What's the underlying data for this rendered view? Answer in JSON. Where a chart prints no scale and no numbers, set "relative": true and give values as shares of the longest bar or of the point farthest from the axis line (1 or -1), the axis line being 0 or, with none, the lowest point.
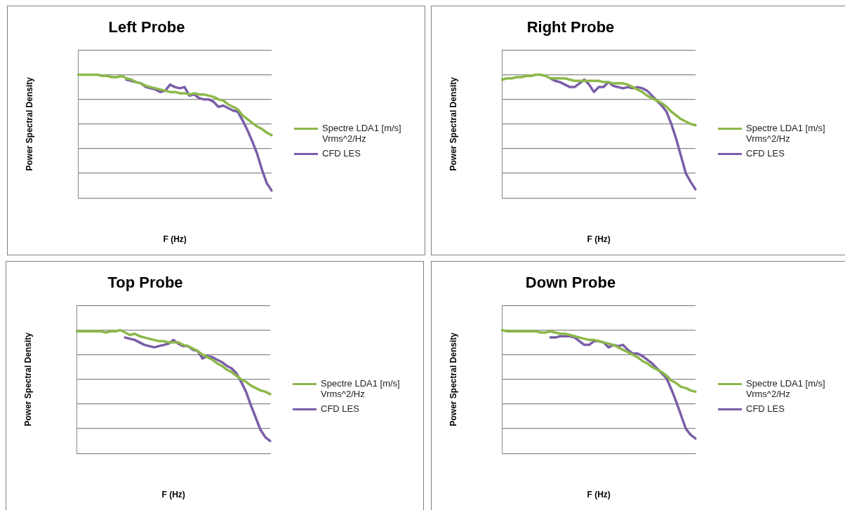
{
  "chart_data": [
    {
      "type": "line",
      "title": "Left Probe",
      "xlabel": "F (Hz)",
      "ylabel": "Power Spectral Density",
      "relative": true,
      "grid": "y",
      "legend": "right",
      "marker": "none",
      "categories": [
        null,
        null,
        null,
        null,
        null,
        null,
        null,
        null,
        null,
        null,
        null,
        null,
        null,
        null,
        null,
        null,
        null,
        null,
        null,
        null,
        null,
        null,
        null,
        null,
        null,
        null,
        null,
        null,
        null,
        null,
        null,
        null,
        null,
        null,
        null,
        null,
        null,
        null,
        null,
        null,
        null
      ],
      "series": [
        {
          "name": "Spectre LDA1 [m/s] Vrms^2/Hz",
          "color": "#8cb84a",
          "values": [
            1.0,
            1.0,
            1.0,
            1.0,
            1.0,
            0.99,
            0.99,
            0.98,
            0.98,
            0.99,
            0.97,
            0.96,
            0.94,
            0.93,
            0.91,
            0.9,
            0.89,
            0.88,
            0.87,
            0.86,
            0.86,
            0.85,
            0.85,
            0.84,
            0.85,
            0.84,
            0.84,
            0.83,
            0.82,
            0.8,
            0.79,
            0.76,
            0.74,
            0.72,
            0.67,
            0.64,
            0.61,
            0.58,
            0.56,
            0.53,
            0.51
          ]
        },
        {
          "name": "CFD LES",
          "color": "#7b5ea7",
          "values": [
            null,
            null,
            null,
            null,
            null,
            null,
            null,
            null,
            null,
            null,
            0.96,
            0.95,
            0.94,
            0.93,
            0.9,
            0.89,
            0.88,
            0.86,
            0.87,
            0.92,
            0.9,
            0.89,
            0.9,
            0.83,
            0.84,
            0.81,
            0.8,
            0.8,
            0.78,
            0.74,
            0.75,
            0.73,
            0.71,
            0.7,
            0.63,
            0.55,
            0.46,
            0.36,
            0.23,
            0.12,
            0.06
          ]
        }
      ]
    },
    {
      "type": "line",
      "title": "Right Probe",
      "xlabel": "F (Hz)",
      "ylabel": "Power Spectral Density",
      "relative": true,
      "grid": "y",
      "legend": "right",
      "marker": "none",
      "categories": [
        null,
        null,
        null,
        null,
        null,
        null,
        null,
        null,
        null,
        null,
        null,
        null,
        null,
        null,
        null,
        null,
        null,
        null,
        null,
        null,
        null,
        null,
        null,
        null,
        null,
        null,
        null,
        null,
        null,
        null,
        null,
        null,
        null,
        null,
        null,
        null,
        null,
        null,
        null,
        null,
        null
      ],
      "series": [
        {
          "name": "Spectre LDA1 [m/s] Vrms^2/Hz",
          "color": "#8cb84a",
          "values": [
            0.96,
            0.97,
            0.97,
            0.98,
            0.98,
            0.99,
            0.99,
            1.0,
            1.0,
            0.99,
            0.97,
            0.97,
            0.97,
            0.97,
            0.96,
            0.95,
            0.95,
            0.95,
            0.95,
            0.95,
            0.95,
            0.94,
            0.94,
            0.93,
            0.93,
            0.93,
            0.92,
            0.9,
            0.88,
            0.86,
            0.83,
            0.81,
            0.79,
            0.77,
            0.74,
            0.7,
            0.67,
            0.64,
            0.62,
            0.6,
            0.59
          ]
        },
        {
          "name": "CFD LES",
          "color": "#7b5ea7",
          "values": [
            null,
            null,
            null,
            null,
            null,
            null,
            null,
            null,
            null,
            null,
            0.97,
            0.95,
            0.94,
            0.92,
            0.9,
            0.9,
            0.93,
            0.96,
            0.92,
            0.86,
            0.9,
            0.9,
            0.94,
            0.91,
            0.9,
            0.89,
            0.9,
            0.89,
            0.9,
            0.89,
            0.87,
            0.83,
            0.79,
            0.75,
            0.7,
            0.6,
            0.48,
            0.34,
            0.2,
            0.13,
            0.07
          ]
        }
      ]
    },
    {
      "type": "line",
      "title": "Top Probe",
      "xlabel": "F (Hz)",
      "ylabel": "Power Spectral Density",
      "relative": true,
      "grid": "y",
      "legend": "right",
      "marker": "none",
      "categories": [
        null,
        null,
        null,
        null,
        null,
        null,
        null,
        null,
        null,
        null,
        null,
        null,
        null,
        null,
        null,
        null,
        null,
        null,
        null,
        null,
        null,
        null,
        null,
        null,
        null,
        null,
        null,
        null,
        null,
        null,
        null,
        null,
        null,
        null,
        null,
        null,
        null,
        null,
        null,
        null,
        null
      ],
      "series": [
        {
          "name": "Spectre LDA1 [m/s] Vrms^2/Hz",
          "color": "#8cb84a",
          "values": [
            0.99,
            0.99,
            0.99,
            0.99,
            0.99,
            0.99,
            0.98,
            0.99,
            0.99,
            1.0,
            0.98,
            0.96,
            0.97,
            0.95,
            0.94,
            0.93,
            0.92,
            0.91,
            0.91,
            0.9,
            0.9,
            0.9,
            0.88,
            0.87,
            0.85,
            0.83,
            0.8,
            0.78,
            0.76,
            0.73,
            0.71,
            0.68,
            0.66,
            0.63,
            0.6,
            0.58,
            0.55,
            0.53,
            0.51,
            0.5,
            0.48
          ]
        },
        {
          "name": "CFD LES",
          "color": "#7b5ea7",
          "values": [
            null,
            null,
            null,
            null,
            null,
            null,
            null,
            null,
            null,
            null,
            0.94,
            0.93,
            0.92,
            0.9,
            0.88,
            0.87,
            0.86,
            0.87,
            0.88,
            0.89,
            0.92,
            0.89,
            0.87,
            0.87,
            0.84,
            0.83,
            0.77,
            0.79,
            0.78,
            0.76,
            0.74,
            0.71,
            0.69,
            0.65,
            0.58,
            0.5,
            0.39,
            0.29,
            0.19,
            0.13,
            0.1
          ]
        }
      ]
    },
    {
      "type": "line",
      "title": "Down Probe",
      "xlabel": "F (Hz)",
      "ylabel": "Power Spectral Density",
      "relative": true,
      "grid": "y",
      "legend": "right",
      "marker": "none",
      "categories": [
        null,
        null,
        null,
        null,
        null,
        null,
        null,
        null,
        null,
        null,
        null,
        null,
        null,
        null,
        null,
        null,
        null,
        null,
        null,
        null,
        null,
        null,
        null,
        null,
        null,
        null,
        null,
        null,
        null,
        null,
        null,
        null,
        null,
        null,
        null,
        null,
        null,
        null,
        null,
        null,
        null
      ],
      "series": [
        {
          "name": "Spectre LDA1 [m/s] Vrms^2/Hz",
          "color": "#8cb84a",
          "values": [
            1.0,
            0.99,
            0.99,
            0.99,
            0.99,
            0.99,
            0.99,
            0.99,
            0.98,
            0.98,
            0.99,
            0.98,
            0.97,
            0.97,
            0.96,
            0.95,
            0.94,
            0.93,
            0.92,
            0.92,
            0.91,
            0.9,
            0.89,
            0.88,
            0.86,
            0.84,
            0.82,
            0.8,
            0.78,
            0.75,
            0.73,
            0.7,
            0.68,
            0.66,
            0.63,
            0.59,
            0.57,
            0.54,
            0.53,
            0.51,
            0.5
          ]
        },
        {
          "name": "CFD LES",
          "color": "#7b5ea7",
          "values": [
            null,
            null,
            null,
            null,
            null,
            null,
            null,
            null,
            null,
            null,
            0.94,
            0.94,
            0.95,
            0.95,
            0.95,
            0.94,
            0.91,
            0.88,
            0.88,
            0.91,
            0.91,
            0.9,
            0.86,
            0.88,
            0.87,
            0.88,
            0.84,
            0.81,
            0.81,
            0.79,
            0.76,
            0.73,
            0.69,
            0.65,
            0.61,
            0.52,
            0.42,
            0.31,
            0.2,
            0.15,
            0.12
          ]
        }
      ]
    }
  ]
}
